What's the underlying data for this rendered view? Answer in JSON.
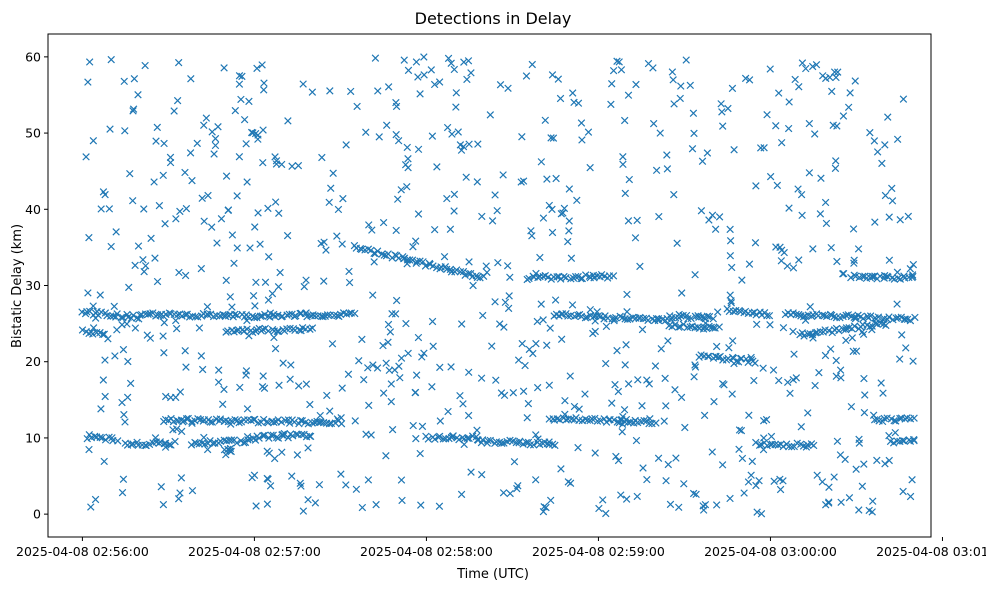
{
  "chart_data": {
    "type": "scatter",
    "title": "Detections in Delay",
    "xlabel": "Time (UTC)",
    "ylabel": "Bistatic Delay (km)",
    "marker": "x",
    "color": "#1f77b4",
    "x_unit": "seconds since 2025-04-08 02:56:00",
    "xlim": [
      -12,
      296
    ],
    "ylim": [
      -3,
      63
    ],
    "x_ticks": [
      0,
      60,
      120,
      180,
      240,
      300
    ],
    "x_tick_labels": [
      "2025-04-08 02:56:00",
      "2025-04-08 02:57:00",
      "2025-04-08 02:58:00",
      "2025-04-08 02:59:00",
      "2025-04-08 03:00:00",
      "2025-04-08 03:01:00"
    ],
    "y_ticks": [
      0,
      10,
      20,
      30,
      40,
      50,
      60
    ],
    "y_tick_labels": [
      "0",
      "10",
      "20",
      "30",
      "40",
      "50",
      "60"
    ],
    "tracks": [
      {
        "t_start": 0,
        "t_end": 20,
        "delay_start": 26.5,
        "delay_end": 25.8
      },
      {
        "t_start": 0,
        "t_end": 8,
        "delay_start": 24.0,
        "delay_end": 23.5
      },
      {
        "t_start": 2,
        "t_end": 12,
        "delay_start": 10.0,
        "delay_end": 9.8
      },
      {
        "t_start": 15,
        "t_end": 32,
        "delay_start": 9.2,
        "delay_end": 9.3
      },
      {
        "t_start": 28,
        "t_end": 90,
        "delay_start": 12.4,
        "delay_end": 12.0
      },
      {
        "t_start": 38,
        "t_end": 58,
        "delay_start": 9.3,
        "delay_end": 9.6
      },
      {
        "t_start": 58,
        "t_end": 80,
        "delay_start": 10.0,
        "delay_end": 10.4
      },
      {
        "t_start": 50,
        "t_end": 80,
        "delay_start": 24.0,
        "delay_end": 24.3
      },
      {
        "t_start": 20,
        "t_end": 60,
        "delay_start": 26.2,
        "delay_end": 26.0
      },
      {
        "t_start": 60,
        "t_end": 95,
        "delay_start": 26.0,
        "delay_end": 26.2
      },
      {
        "t_start": 95,
        "t_end": 140,
        "delay_start": 35.0,
        "delay_end": 31.0
      },
      {
        "t_start": 120,
        "t_end": 138,
        "delay_start": 10.0,
        "delay_end": 10.0
      },
      {
        "t_start": 138,
        "t_end": 165,
        "delay_start": 9.6,
        "delay_end": 9.2
      },
      {
        "t_start": 163,
        "t_end": 190,
        "delay_start": 12.5,
        "delay_end": 12.2
      },
      {
        "t_start": 190,
        "t_end": 200,
        "delay_start": 12.2,
        "delay_end": 12.0
      },
      {
        "t_start": 155,
        "t_end": 185,
        "delay_start": 31.0,
        "delay_end": 31.2
      },
      {
        "t_start": 165,
        "t_end": 205,
        "delay_start": 26.2,
        "delay_end": 25.4
      },
      {
        "t_start": 205,
        "t_end": 220,
        "delay_start": 26.0,
        "delay_end": 25.7
      },
      {
        "t_start": 205,
        "t_end": 222,
        "delay_start": 24.8,
        "delay_end": 24.4
      },
      {
        "t_start": 215,
        "t_end": 235,
        "delay_start": 20.8,
        "delay_end": 20.0
      },
      {
        "t_start": 225,
        "t_end": 240,
        "delay_start": 26.8,
        "delay_end": 26.2
      },
      {
        "t_start": 235,
        "t_end": 255,
        "delay_start": 9.2,
        "delay_end": 9.0
      },
      {
        "t_start": 245,
        "t_end": 290,
        "delay_start": 26.2,
        "delay_end": 25.6
      },
      {
        "t_start": 250,
        "t_end": 280,
        "delay_start": 23.5,
        "delay_end": 25.0
      },
      {
        "t_start": 268,
        "t_end": 290,
        "delay_start": 31.2,
        "delay_end": 31.0
      },
      {
        "t_start": 276,
        "t_end": 290,
        "delay_start": 12.3,
        "delay_end": 12.5
      },
      {
        "t_start": 282,
        "t_end": 290,
        "delay_start": 9.6,
        "delay_end": 9.5
      }
    ],
    "noise": {
      "count": 850,
      "t_range": [
        0,
        290
      ],
      "delay_range": [
        0,
        60
      ]
    }
  }
}
